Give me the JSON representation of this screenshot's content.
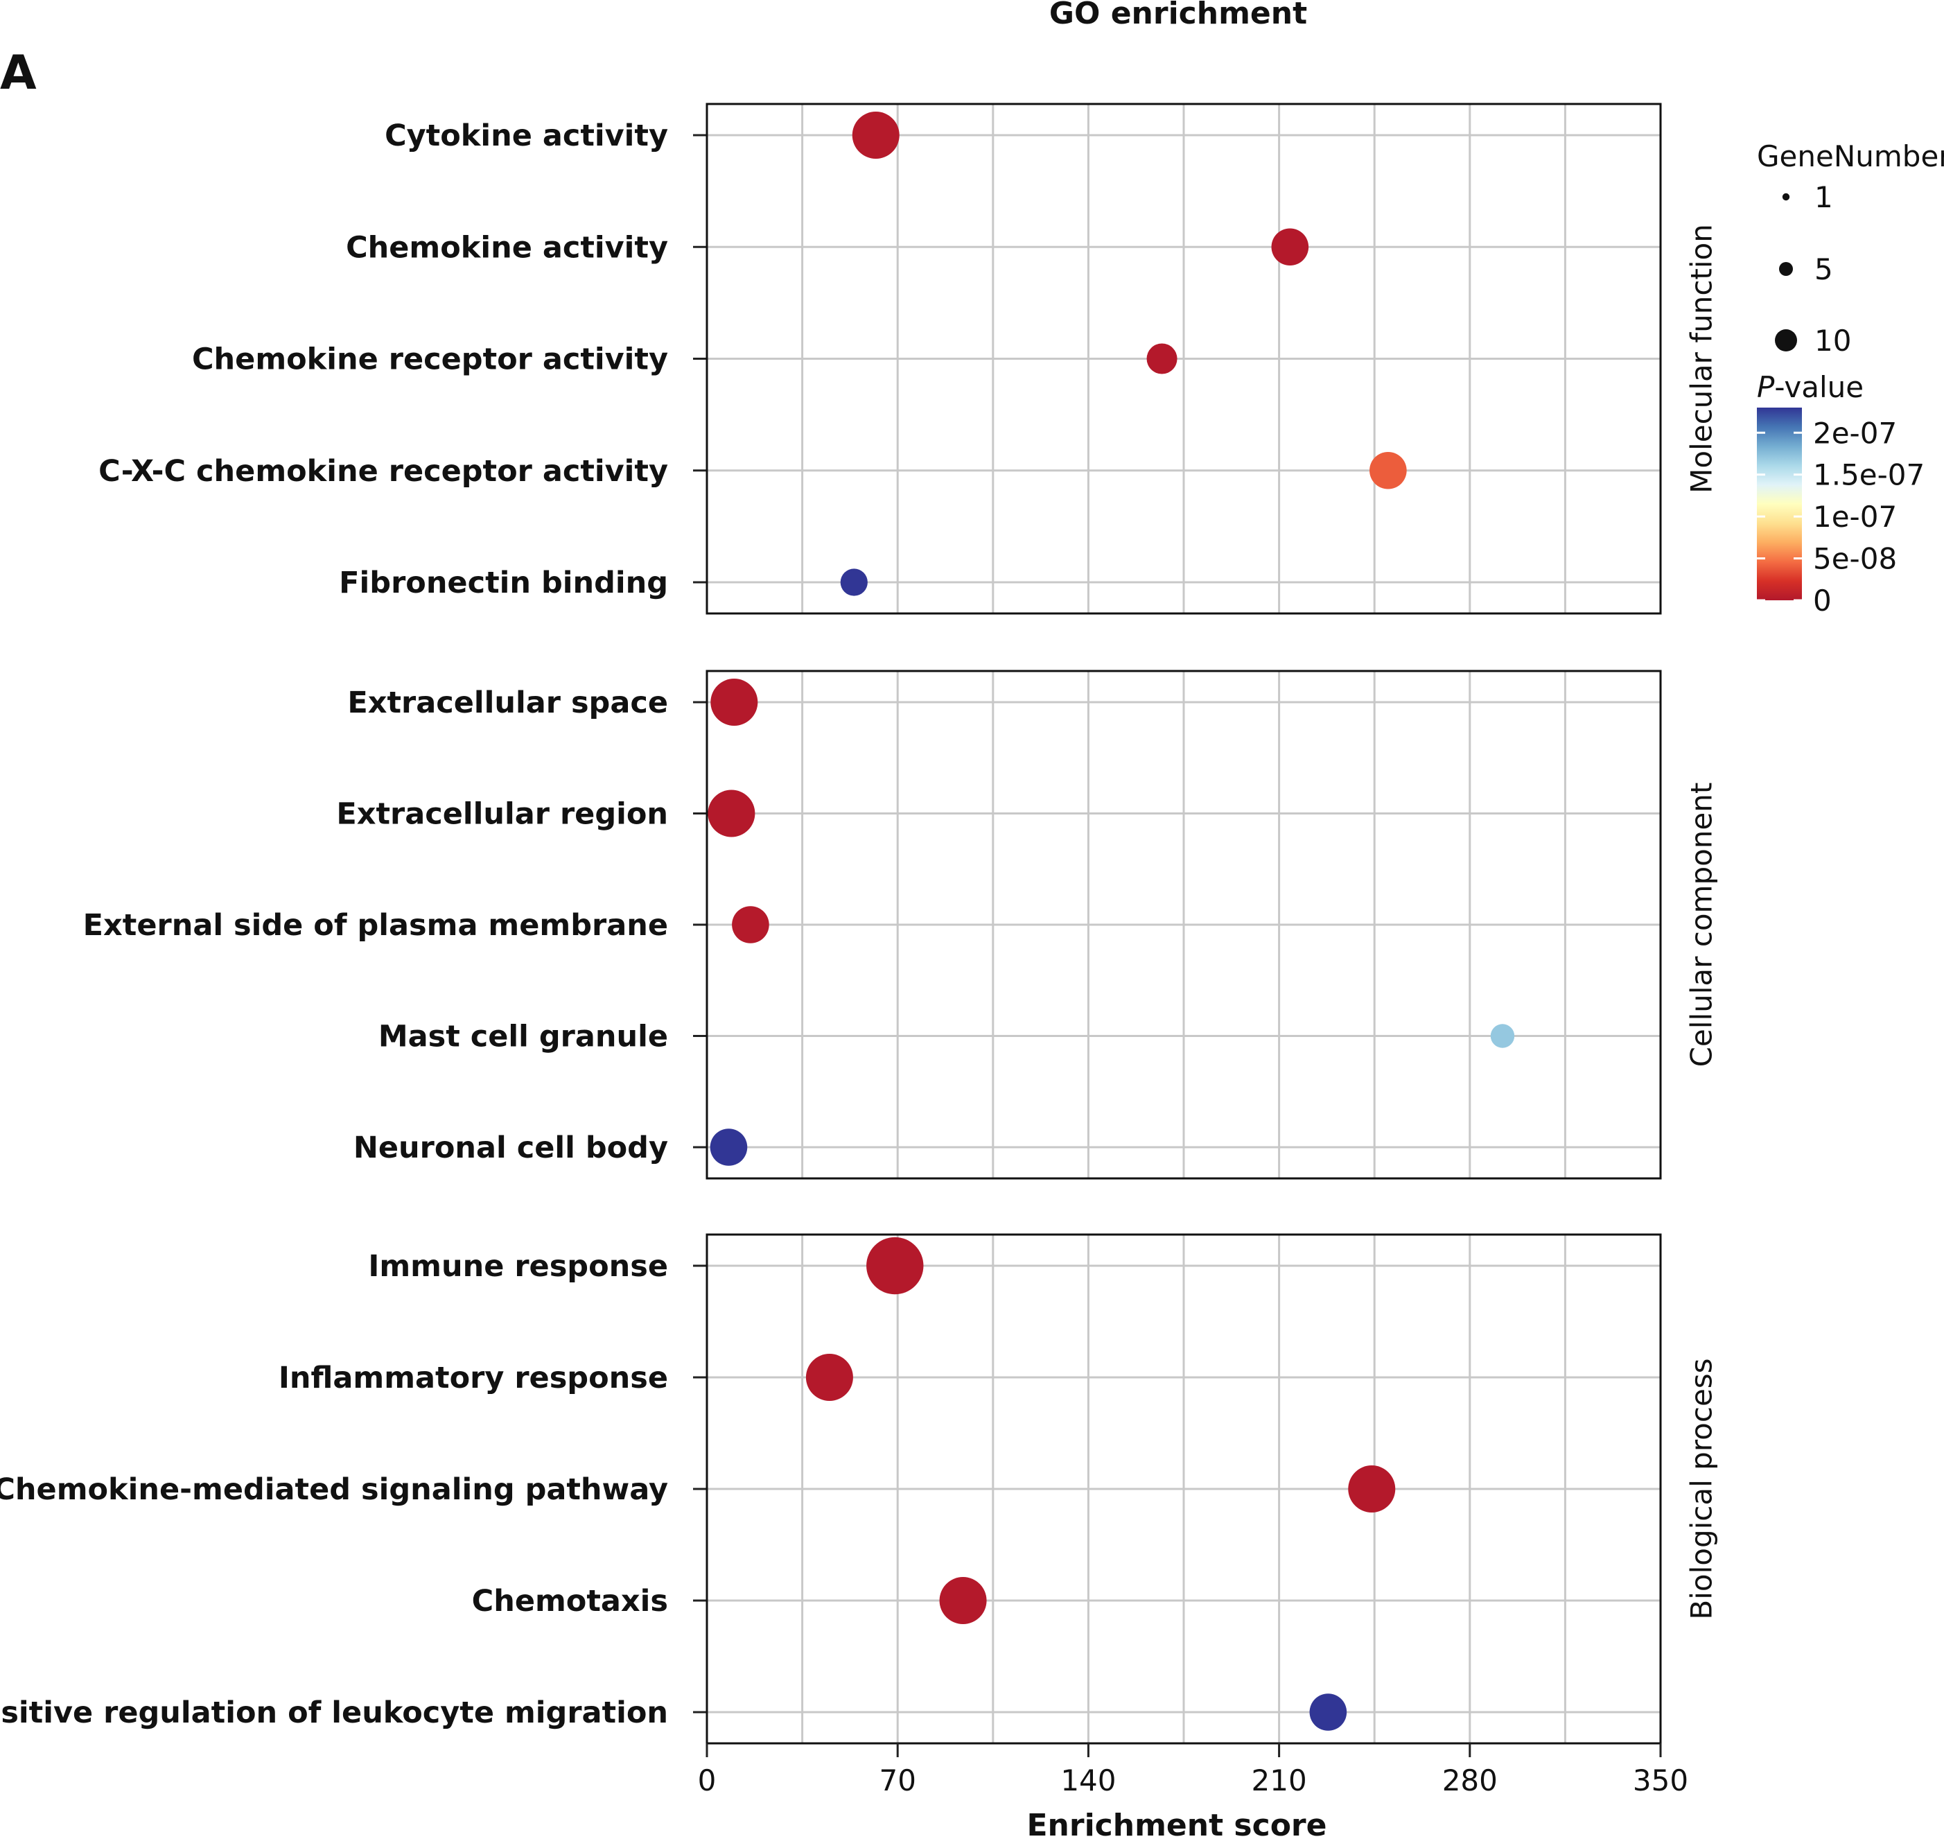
{
  "panel_letter": "A",
  "chart_data": {
    "type": "scatter",
    "title": "GO enrichment",
    "xlabel": "Enrichment score",
    "xlim": [
      0,
      350
    ],
    "x_ticks": [
      0,
      70,
      140,
      210,
      280,
      350
    ],
    "grid": true,
    "panels": [
      {
        "name": "Molecular function",
        "terms": [
          {
            "label": "Cytokine activity",
            "x": 62,
            "gene_number": 10,
            "p_value": 2e-09
          },
          {
            "label": "Chemokine activity",
            "x": 214,
            "gene_number": 7,
            "p_value": 1e-09
          },
          {
            "label": "Chemokine receptor activity",
            "x": 167,
            "gene_number": 5,
            "p_value": 1e-09
          },
          {
            "label": "C-X-C chemokine receptor activity",
            "x": 250,
            "gene_number": 7,
            "p_value": 4e-08
          },
          {
            "label": "Fibronectin binding",
            "x": 54,
            "gene_number": 4,
            "p_value": 2.3e-07
          }
        ]
      },
      {
        "name": "Cellular component",
        "terms": [
          {
            "label": "Extracellular space",
            "x": 10,
            "gene_number": 10,
            "p_value": 1e-09
          },
          {
            "label": "Extracellular region",
            "x": 9,
            "gene_number": 10,
            "p_value": 1e-09
          },
          {
            "label": "External side of plasma membrane",
            "x": 16,
            "gene_number": 7,
            "p_value": 2e-09
          },
          {
            "label": "Mast cell granule",
            "x": 292,
            "gene_number": 3,
            "p_value": 1.7e-07
          },
          {
            "label": "Neuronal cell body",
            "x": 8,
            "gene_number": 7,
            "p_value": 2.3e-07
          }
        ]
      },
      {
        "name": "Biological process",
        "terms": [
          {
            "label": "Immune response",
            "x": 69,
            "gene_number": 13,
            "p_value": 1e-09
          },
          {
            "label": "Inflammatory response",
            "x": 45,
            "gene_number": 10,
            "p_value": 1e-09
          },
          {
            "label": "Chemokine-mediated signaling pathway",
            "x": 244,
            "gene_number": 10,
            "p_value": 1e-09
          },
          {
            "label": "Chemotaxis",
            "x": 94,
            "gene_number": 10,
            "p_value": 1e-09
          },
          {
            "label": "Positive regulation of leukocyte migration",
            "x": 228,
            "gene_number": 7,
            "p_value": 2.3e-07
          }
        ]
      }
    ],
    "legend": {
      "placement": "top-right",
      "size_title": "GeneNumber",
      "size_entries": [
        1,
        5,
        10
      ],
      "color_title_italic": "P",
      "color_title_rest": "-value",
      "color_ticks": [
        {
          "label": "2e-07",
          "value": 2e-07
        },
        {
          "label": "1.5e-07",
          "value": 1.5e-07
        },
        {
          "label": "1e-07",
          "value": 1e-07
        },
        {
          "label": "5e-08",
          "value": 5e-08
        },
        {
          "label": "0",
          "value": 0
        }
      ],
      "color_max": 2.3e-07,
      "colors": [
        "#b2182b",
        "#d73027",
        "#f46d43",
        "#fdae61",
        "#fee090",
        "#ffffbf",
        "#e0f3f8",
        "#abd9e9",
        "#74add1",
        "#4575b4",
        "#313695"
      ]
    }
  }
}
